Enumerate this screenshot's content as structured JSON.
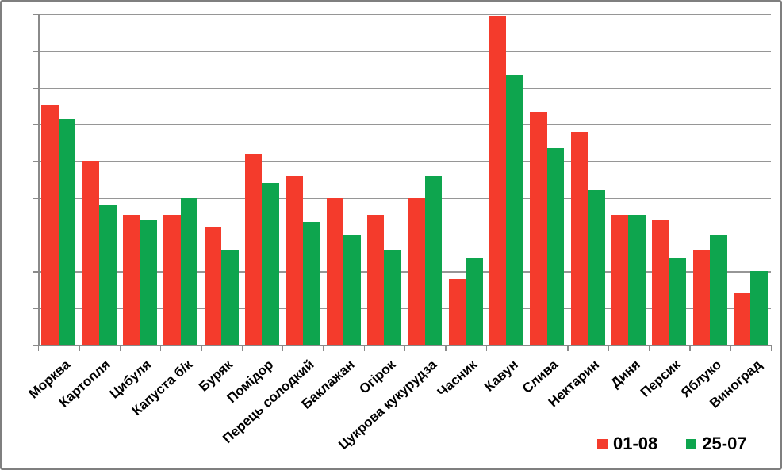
{
  "chart_data": {
    "type": "bar",
    "title": "",
    "xlabel": "",
    "ylabel": "",
    "categories": [
      "Морква",
      "Картопля",
      "Цибуля",
      "Капуста б/к",
      "Буряк",
      "Помідор",
      "Перець солодкий",
      "Баклажан",
      "Огірок",
      "Цукрова кукурудза",
      "Часник",
      "Кавун",
      "Слива",
      "Нектарин",
      "Диня",
      "Персик",
      "Яблуко",
      "Виноград"
    ],
    "series": [
      {
        "name": "01-08",
        "color": "#F43B2C",
        "values": [
          6.55,
          5.0,
          3.55,
          3.55,
          3.2,
          5.2,
          4.6,
          4.0,
          3.55,
          4.0,
          1.8,
          8.95,
          6.35,
          5.8,
          3.55,
          3.4,
          2.6,
          1.4
        ]
      },
      {
        "name": "25-07",
        "color": "#0EA54E",
        "values": [
          6.15,
          3.8,
          3.4,
          4.0,
          2.6,
          4.4,
          3.35,
          3.0,
          2.6,
          4.6,
          2.35,
          7.35,
          5.35,
          4.2,
          3.55,
          2.35,
          3.0,
          2.0
        ]
      }
    ],
    "ylim": [
      0,
      9
    ],
    "gridline_step": 1,
    "y_units_note": "no y-axis tick labels shown; values measured in gridline intervals",
    "y_tick_labels_visible": false,
    "x_tick_label_rotation_deg": -42,
    "grid": true,
    "legend_position": "bottom-right",
    "colors": {
      "background": "#FFFFFF",
      "gridline": "#969696",
      "axis": "#8A8A8A",
      "frame_border": "#7F7F7F",
      "label_text": "#000000"
    }
  }
}
